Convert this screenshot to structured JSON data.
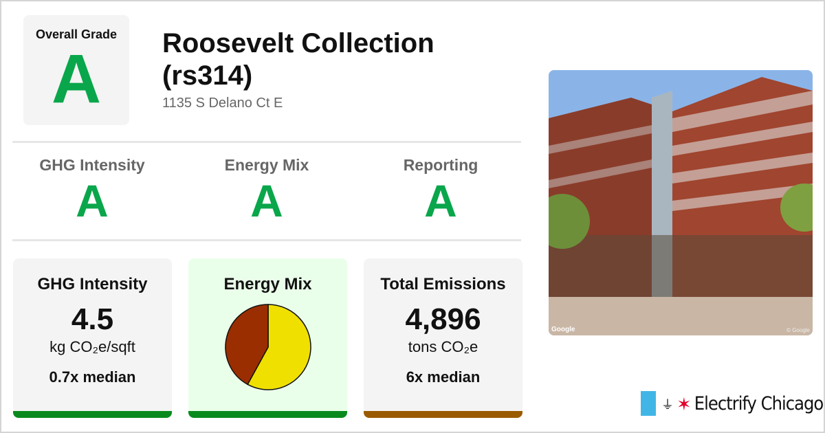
{
  "overall": {
    "label": "Overall Grade",
    "grade": "A"
  },
  "building": {
    "title": "Roosevelt Collection (rs314)",
    "address": "1135 S Delano Ct E"
  },
  "grades": [
    {
      "label": "GHG Intensity",
      "grade": "A"
    },
    {
      "label": "Energy Mix",
      "grade": "A"
    },
    {
      "label": "Reporting",
      "grade": "A"
    }
  ],
  "cards": {
    "ghg": {
      "label": "GHG Intensity",
      "value": "4.5",
      "unit": "kg CO₂e/sqft",
      "median": "0.7x median",
      "bar_color": "#0a8a1e"
    },
    "energy_mix": {
      "label": "Energy Mix",
      "bar_color": "#0a8a1e"
    },
    "emissions": {
      "label": "Total Emissions",
      "value": "4,896",
      "unit": "tons CO₂e",
      "median": "6x median",
      "bar_color": "#9a5a00"
    }
  },
  "chart_data": {
    "type": "pie",
    "slices": [
      {
        "value": 58,
        "color": "#f0e000"
      },
      {
        "value": 42,
        "color": "#9a2e00"
      }
    ]
  },
  "photo": {
    "credit_left": "Google",
    "credit_right": "© Google"
  },
  "brand": {
    "name": "Electrify Chicago",
    "colors": {
      "light_blue": "#41b6e6",
      "star_red": "#e4002b"
    }
  }
}
